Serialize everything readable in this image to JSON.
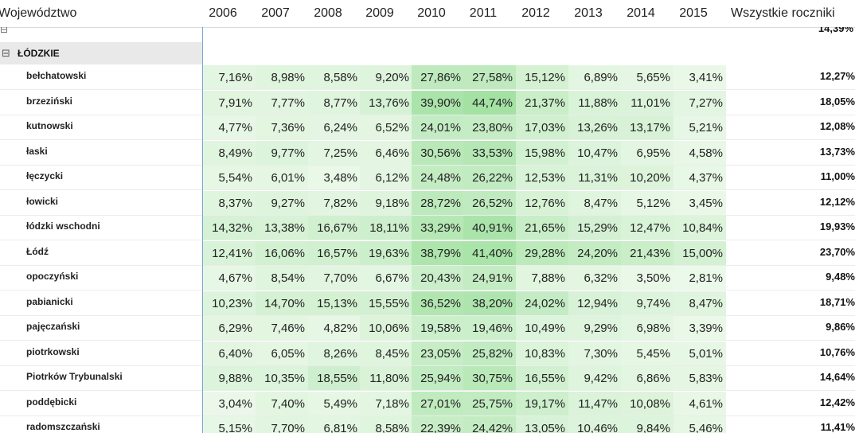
{
  "header": {
    "first_col": "Województwo",
    "years": [
      "2006",
      "2007",
      "2008",
      "2009",
      "2010",
      "2011",
      "2012",
      "2013",
      "2014",
      "2015"
    ],
    "total_col": "Wszystkie roczniki"
  },
  "partial_top_row": {
    "total": "14,39%"
  },
  "group": {
    "expander": "⊟",
    "name": "ŁÓDZKIE"
  },
  "rows": [
    {
      "name": "bełchatowski",
      "values": [
        "7,16%",
        "8,98%",
        "8,58%",
        "9,20%",
        "27,86%",
        "27,58%",
        "15,12%",
        "6,89%",
        "5,65%",
        "3,41%"
      ],
      "total": "12,27%"
    },
    {
      "name": "brzeziński",
      "values": [
        "7,91%",
        "7,77%",
        "8,77%",
        "13,76%",
        "39,90%",
        "44,74%",
        "21,37%",
        "11,88%",
        "11,01%",
        "7,27%"
      ],
      "total": "18,05%"
    },
    {
      "name": "kutnowski",
      "values": [
        "4,77%",
        "7,36%",
        "6,24%",
        "6,52%",
        "24,01%",
        "23,80%",
        "17,03%",
        "13,26%",
        "13,17%",
        "5,21%"
      ],
      "total": "12,08%"
    },
    {
      "name": "łaski",
      "values": [
        "8,49%",
        "9,77%",
        "7,25%",
        "6,46%",
        "30,56%",
        "33,53%",
        "15,98%",
        "10,47%",
        "6,95%",
        "4,58%"
      ],
      "total": "13,73%"
    },
    {
      "name": "łęczycki",
      "values": [
        "5,54%",
        "6,01%",
        "3,48%",
        "6,12%",
        "24,48%",
        "26,22%",
        "12,53%",
        "11,31%",
        "10,20%",
        "4,37%"
      ],
      "total": "11,00%"
    },
    {
      "name": "łowicki",
      "values": [
        "8,37%",
        "9,27%",
        "7,82%",
        "9,18%",
        "28,72%",
        "26,52%",
        "12,76%",
        "8,47%",
        "5,12%",
        "3,45%"
      ],
      "total": "12,12%"
    },
    {
      "name": "łódzki wschodni",
      "values": [
        "14,32%",
        "13,38%",
        "16,67%",
        "18,11%",
        "33,29%",
        "40,91%",
        "21,65%",
        "15,29%",
        "12,47%",
        "10,84%"
      ],
      "total": "19,93%"
    },
    {
      "name": "Łódź",
      "values": [
        "12,41%",
        "16,06%",
        "16,57%",
        "19,63%",
        "38,79%",
        "41,40%",
        "29,28%",
        "24,20%",
        "21,43%",
        "15,00%"
      ],
      "total": "23,70%"
    },
    {
      "name": "opoczyński",
      "values": [
        "4,67%",
        "8,54%",
        "7,70%",
        "6,67%",
        "20,43%",
        "24,91%",
        "7,88%",
        "6,32%",
        "3,50%",
        "2,81%"
      ],
      "total": "9,48%"
    },
    {
      "name": "pabianicki",
      "values": [
        "10,23%",
        "14,70%",
        "15,13%",
        "15,55%",
        "36,52%",
        "38,20%",
        "24,02%",
        "12,94%",
        "9,74%",
        "8,47%"
      ],
      "total": "18,71%"
    },
    {
      "name": "pajęczański",
      "values": [
        "6,29%",
        "7,46%",
        "4,82%",
        "10,06%",
        "19,58%",
        "19,46%",
        "10,49%",
        "9,29%",
        "6,98%",
        "3,39%"
      ],
      "total": "9,86%"
    },
    {
      "name": "piotrkowski",
      "values": [
        "6,40%",
        "6,05%",
        "8,26%",
        "8,45%",
        "23,05%",
        "25,82%",
        "10,83%",
        "7,30%",
        "5,45%",
        "5,01%"
      ],
      "total": "10,76%"
    },
    {
      "name": "Piotrków Trybunalski",
      "values": [
        "9,88%",
        "10,35%",
        "18,55%",
        "11,80%",
        "25,94%",
        "30,75%",
        "16,55%",
        "9,42%",
        "6,86%",
        "5,83%"
      ],
      "total": "14,64%"
    },
    {
      "name": "poddębicki",
      "values": [
        "3,04%",
        "7,40%",
        "5,49%",
        "7,18%",
        "27,01%",
        "25,75%",
        "19,17%",
        "11,47%",
        "10,08%",
        "4,61%"
      ],
      "total": "12,42%"
    },
    {
      "name": "radomszczański",
      "values": [
        "5,15%",
        "7,70%",
        "6,81%",
        "8,58%",
        "22,39%",
        "24,42%",
        "13,05%",
        "10,46%",
        "9,84%",
        "5,46%"
      ],
      "total": "11,41%"
    }
  ],
  "colors": {
    "heat_low": "#f3fbf1",
    "heat_high": "#a4e2a4",
    "row_header_line": "#7aa6d6",
    "group_bg": "#e9e9e9"
  }
}
